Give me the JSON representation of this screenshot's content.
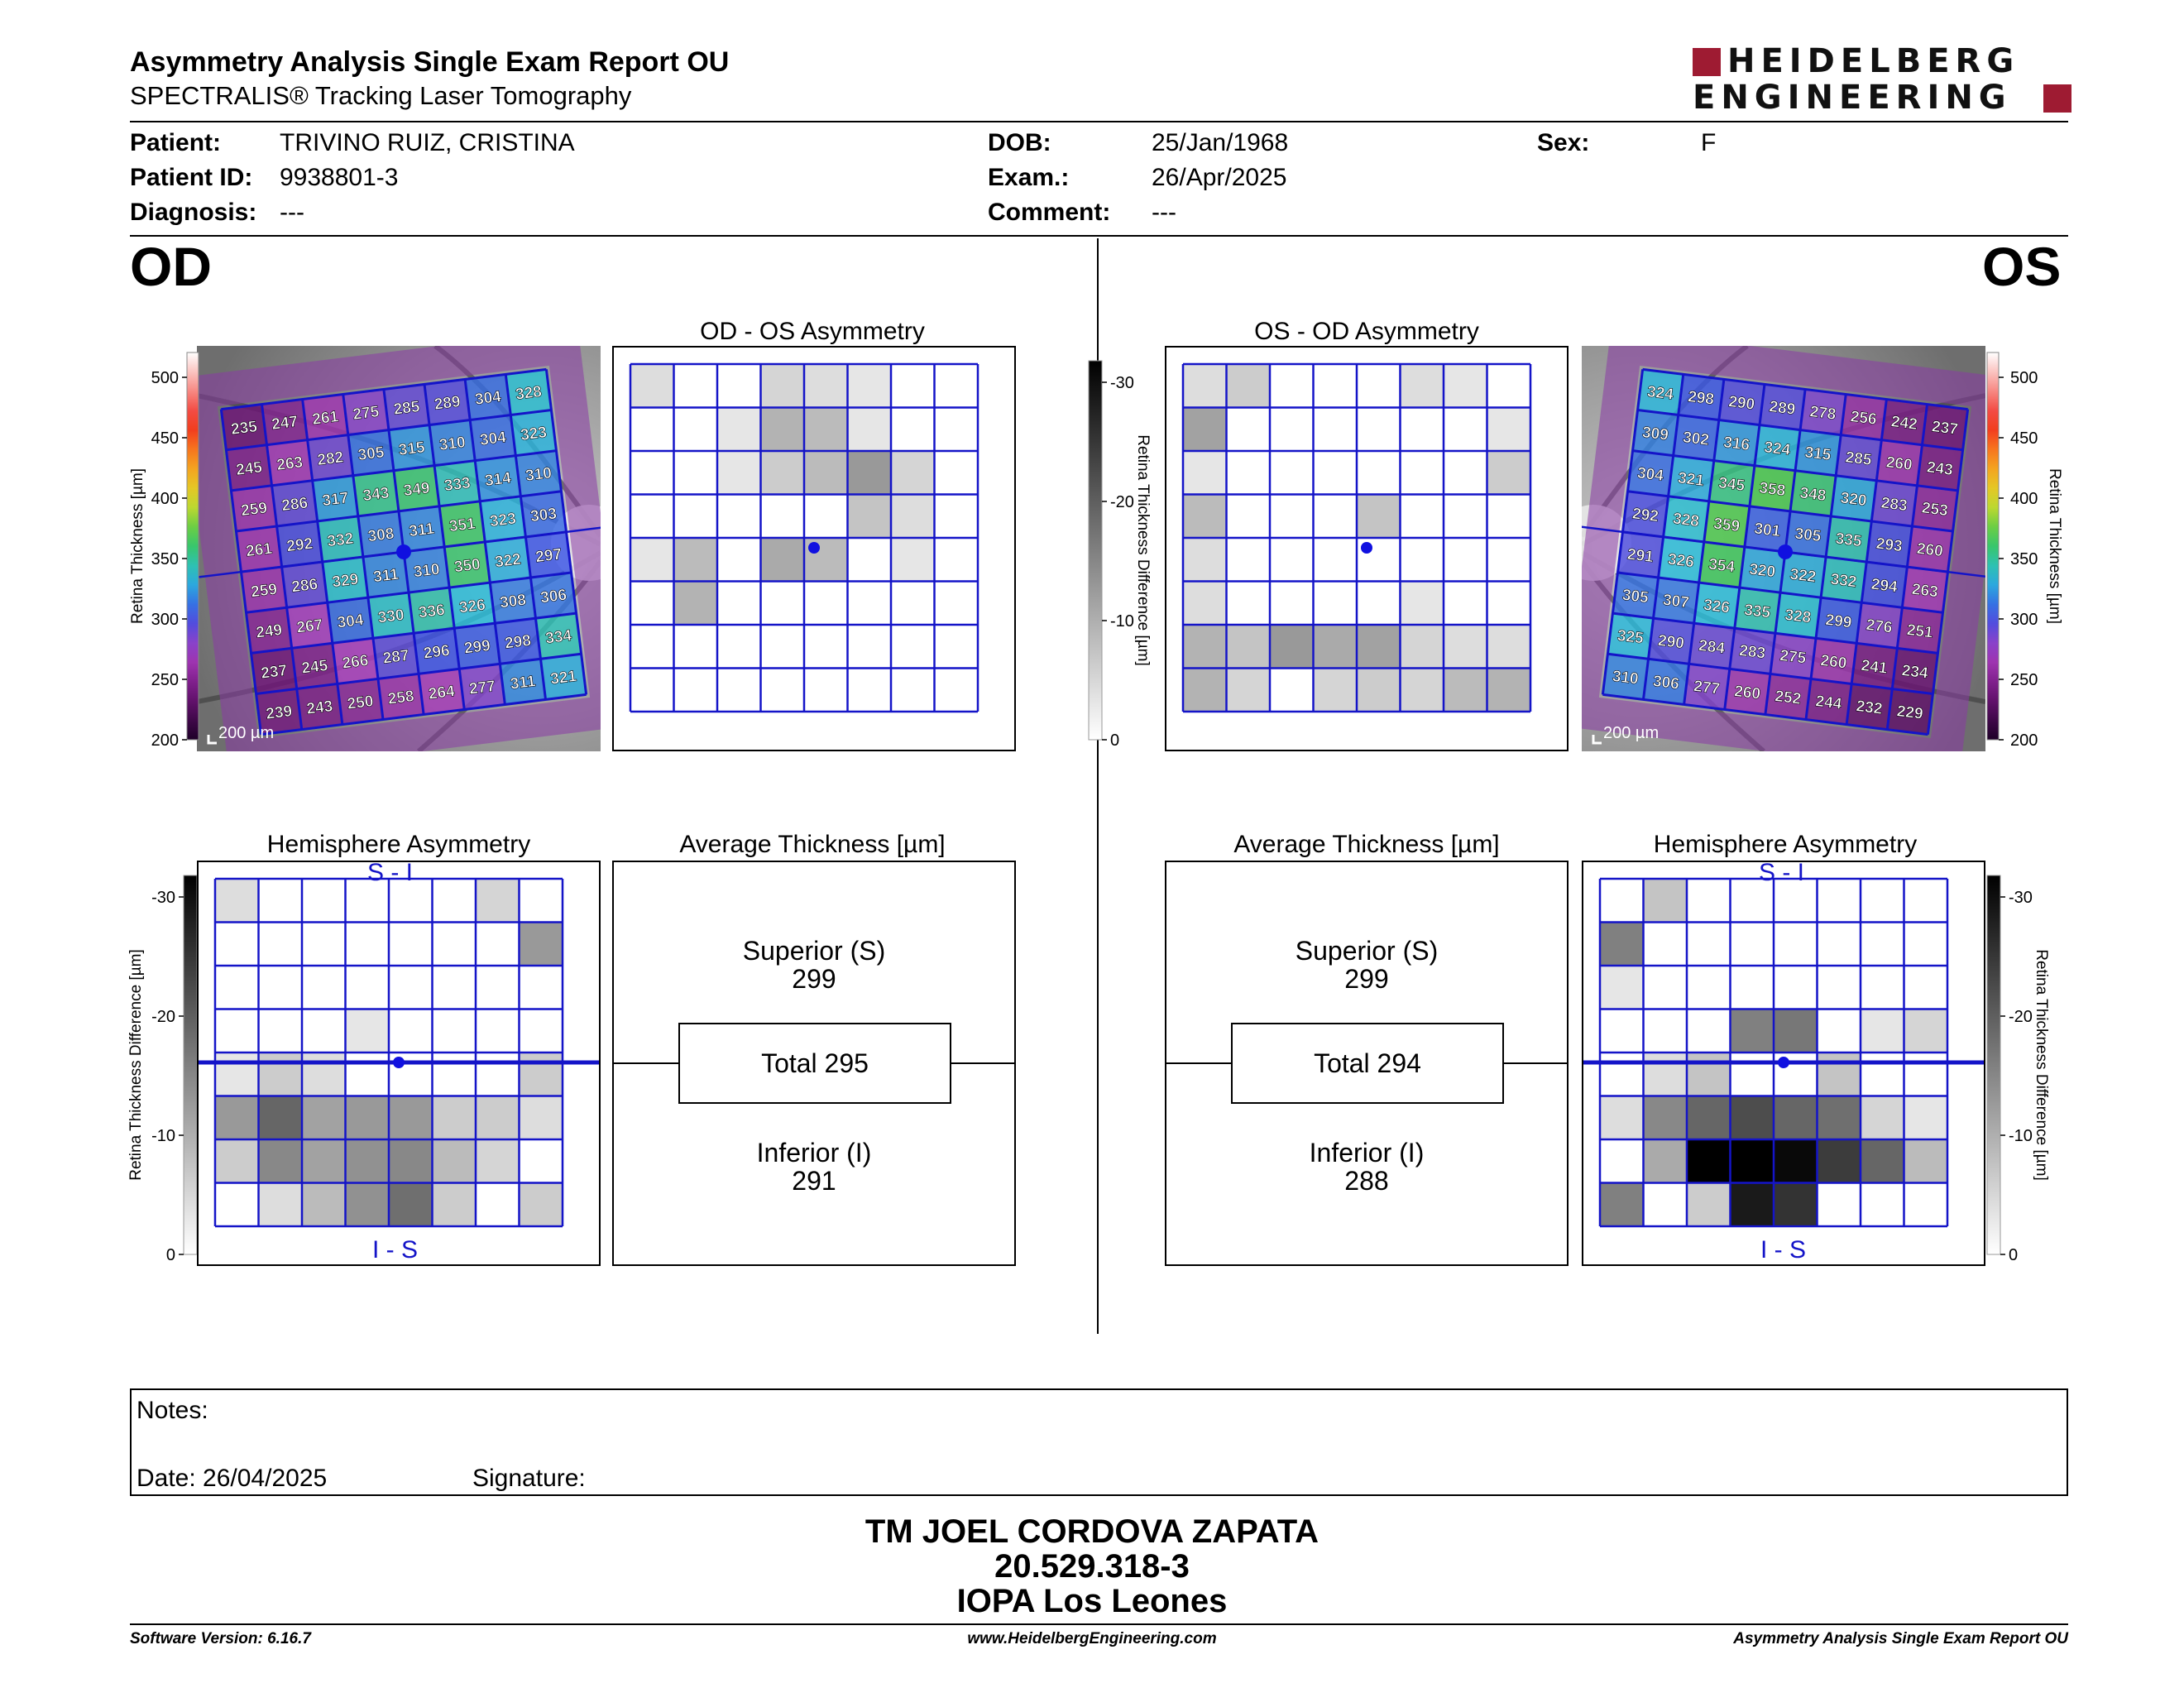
{
  "header": {
    "title": "Asymmetry Analysis Single Exam Report OU",
    "subtitle": "SPECTRALIS® Tracking Laser Tomography",
    "logo_line1": "HEIDELBERG",
    "logo_line2": "ENGINEERING",
    "colors": {
      "logo_red": "#9e1b32"
    }
  },
  "patient": {
    "patient_label": "Patient:",
    "patient_value": "TRIVINO RUIZ, CRISTINA",
    "id_label": "Patient ID:",
    "id_value": "9938801-3",
    "diagnosis_label": "Diagnosis:",
    "diagnosis_value": "---",
    "dob_label": "DOB:",
    "dob_value": "25/Jan/1968",
    "exam_label": "Exam.:",
    "exam_value": "26/Apr/2025",
    "comment_label": "Comment:",
    "comment_value": "---",
    "sex_label": "Sex:",
    "sex_value": "F"
  },
  "eyes": {
    "od": "OD",
    "os": "OS"
  },
  "thickness_scale": {
    "label": "Retina Thickness [µm]",
    "ticks": [
      "500",
      "450",
      "400",
      "350",
      "300",
      "250",
      "200"
    ]
  },
  "difference_scale": {
    "label": "Retina Thickness Difference [µm]",
    "ticks": [
      "-30",
      "-20",
      "-10",
      "0"
    ]
  },
  "scale_bar": "200 µm",
  "od": {
    "thickness_grid": [
      [
        "235",
        "247",
        "261",
        "275",
        "285",
        "289",
        "304",
        "328"
      ],
      [
        "245",
        "263",
        "282",
        "305",
        "315",
        "310",
        "304",
        "323"
      ],
      [
        "259",
        "286",
        "317",
        "343",
        "349",
        "333",
        "314",
        "310"
      ],
      [
        "261",
        "292",
        "332",
        "308",
        "311",
        "351",
        "323",
        "303"
      ],
      [
        "259",
        "286",
        "329",
        "311",
        "310",
        "350",
        "322",
        "297"
      ],
      [
        "249",
        "267",
        "304",
        "330",
        "336",
        "326",
        "308",
        "306"
      ],
      [
        "237",
        "245",
        "266",
        "287",
        "296",
        "299",
        "298",
        "334"
      ],
      [
        "239",
        "243",
        "250",
        "258",
        "264",
        "277",
        "311",
        "321"
      ]
    ],
    "asymmetry_title": "OD - OS Asymmetry",
    "asymmetry_grid": [
      [
        4,
        0,
        0,
        5,
        4,
        3,
        0,
        0
      ],
      [
        0,
        0,
        3,
        9,
        8,
        3,
        0,
        0
      ],
      [
        0,
        0,
        3,
        6,
        8,
        12,
        5,
        0
      ],
      [
        0,
        0,
        0,
        0,
        0,
        7,
        4,
        0
      ],
      [
        3,
        8,
        0,
        10,
        8,
        0,
        3,
        0
      ],
      [
        0,
        9,
        0,
        0,
        0,
        0,
        0,
        0
      ],
      [
        0,
        0,
        0,
        0,
        0,
        0,
        0,
        0
      ],
      [
        0,
        0,
        0,
        0,
        0,
        0,
        0,
        0
      ]
    ],
    "hemisphere_title": "Hemisphere Asymmetry",
    "hemisphere_grid": [
      [
        4,
        0,
        0,
        0,
        0,
        0,
        5,
        0
      ],
      [
        0,
        0,
        0,
        0,
        0,
        0,
        0,
        12
      ],
      [
        0,
        0,
        0,
        0,
        0,
        0,
        0,
        0
      ],
      [
        0,
        0,
        0,
        3,
        0,
        0,
        0,
        0
      ],
      [
        3,
        6,
        4,
        0,
        0,
        0,
        0,
        6
      ],
      [
        12,
        18,
        11,
        12,
        12,
        6,
        6,
        4
      ],
      [
        6,
        14,
        11,
        13,
        14,
        8,
        5,
        0
      ],
      [
        0,
        4,
        8,
        13,
        17,
        6,
        0,
        6
      ]
    ],
    "hemi_top": "S - I",
    "hemi_bottom": "I - S",
    "avg_title": "Average Thickness [µm]",
    "superior_label": "Superior (S)",
    "superior_value": "299",
    "total_text": "Total 295",
    "inferior_label": "Inferior (I)",
    "inferior_value": "291"
  },
  "os": {
    "thickness_grid": [
      [
        "324",
        "298",
        "290",
        "289",
        "278",
        "256",
        "242",
        "237"
      ],
      [
        "309",
        "302",
        "316",
        "324",
        "315",
        "285",
        "260",
        "243"
      ],
      [
        "304",
        "321",
        "345",
        "358",
        "348",
        "320",
        "283",
        "253"
      ],
      [
        "292",
        "328",
        "359",
        "301",
        "305",
        "335",
        "293",
        "260"
      ],
      [
        "291",
        "326",
        "354",
        "320",
        "322",
        "332",
        "294",
        "263"
      ],
      [
        "305",
        "307",
        "326",
        "335",
        "328",
        "299",
        "276",
        "251"
      ],
      [
        "325",
        "290",
        "284",
        "283",
        "275",
        "260",
        "241",
        "234"
      ],
      [
        "310",
        "306",
        "277",
        "260",
        "252",
        "244",
        "232",
        "229"
      ]
    ],
    "asymmetry_title": "OS - OD Asymmetry",
    "asymmetry_grid": [
      [
        4,
        6,
        0,
        0,
        0,
        4,
        3,
        0
      ],
      [
        11,
        0,
        0,
        0,
        0,
        0,
        0,
        3
      ],
      [
        3,
        0,
        0,
        0,
        0,
        0,
        0,
        6
      ],
      [
        8,
        0,
        0,
        0,
        7,
        0,
        0,
        0
      ],
      [
        4,
        0,
        0,
        0,
        0,
        0,
        0,
        0
      ],
      [
        4,
        0,
        0,
        0,
        0,
        3,
        0,
        0
      ],
      [
        9,
        7,
        12,
        10,
        11,
        5,
        4,
        4
      ],
      [
        9,
        5,
        0,
        5,
        6,
        5,
        8,
        9
      ]
    ],
    "hemisphere_title": "Hemisphere Asymmetry",
    "hemisphere_grid": [
      [
        0,
        7,
        0,
        0,
        0,
        0,
        0,
        0
      ],
      [
        15,
        0,
        0,
        0,
        0,
        0,
        0,
        0
      ],
      [
        3,
        0,
        0,
        0,
        0,
        0,
        0,
        0
      ],
      [
        0,
        0,
        0,
        15,
        16,
        0,
        3,
        5
      ],
      [
        0,
        4,
        7,
        0,
        0,
        7,
        0,
        0
      ],
      [
        4,
        14,
        18,
        21,
        18,
        17,
        5,
        3
      ],
      [
        0,
        10,
        30,
        30,
        29,
        23,
        18,
        8
      ],
      [
        15,
        0,
        6,
        27,
        24,
        0,
        0,
        0
      ]
    ],
    "hemi_top": "S - I",
    "hemi_bottom": "I - S",
    "avg_title": "Average Thickness [µm]",
    "superior_label": "Superior (S)",
    "superior_value": "299",
    "total_text": "Total 294",
    "inferior_label": "Inferior (I)",
    "inferior_value": "288"
  },
  "notes": {
    "notes_label": "Notes:",
    "date_label": "Date: 26/04/2025",
    "signature_label": "Signature:"
  },
  "signature_block": {
    "name": "TM JOEL CORDOVA ZAPATA",
    "rut": "20.529.318-3",
    "institution": "IOPA Los Leones"
  },
  "footer": {
    "software": "Software Version: 6.16.7",
    "website": "www.HeidelbergEngineering.com",
    "report_name": "Asymmetry Analysis Single Exam Report OU"
  },
  "colors": {
    "grid_blue": "#1414c8",
    "fovea_blue": "#1010e0"
  }
}
